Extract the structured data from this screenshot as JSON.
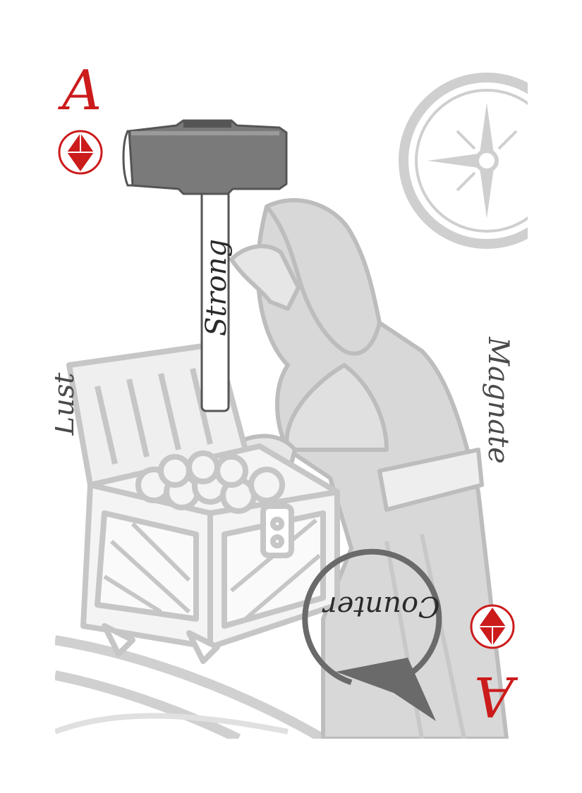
{
  "card": {
    "rank": "A",
    "suit_icon": "diamond-gem-icon",
    "suit_color": "#cc1b1b",
    "labels": {
      "left": "Lust",
      "hammer": "Strong",
      "right": "Magnate",
      "arrow": "Counter"
    },
    "illustration": "hooded-figure-with-treasure-chest",
    "art_color": "#c9c9c9"
  }
}
